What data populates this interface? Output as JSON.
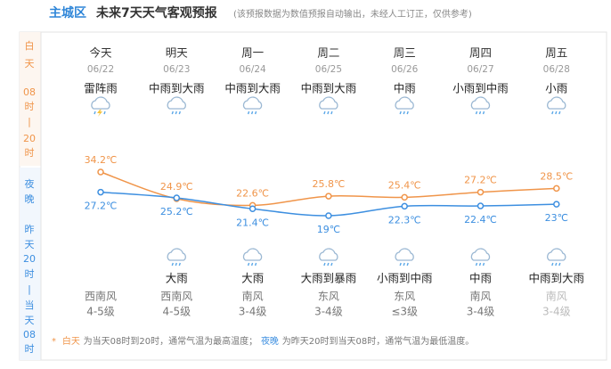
{
  "header": {
    "location": "主城区",
    "title": "未来7天天气客观预报",
    "subtitle": "(该预报数据为数值预报自动输出，未经人工订正，仅供参考)"
  },
  "sidebar": {
    "day": [
      "白",
      "天",
      "08",
      "时",
      "|",
      "20",
      "时"
    ],
    "night": [
      "夜",
      "晚",
      "昨",
      "天",
      "20",
      "时",
      "|",
      "当",
      "天",
      "08",
      "时"
    ]
  },
  "chart_data": {
    "type": "line",
    "categories": [
      "今天",
      "明天",
      "周一",
      "周二",
      "周三",
      "周四",
      "周五"
    ],
    "dates": [
      "06/22",
      "06/23",
      "06/24",
      "06/25",
      "06/26",
      "06/27",
      "06/28"
    ],
    "day_weather": [
      "雷阵雨",
      "中雨到大雨",
      "中雨到大雨",
      "中雨到大雨",
      "中雨",
      "小雨到中雨",
      "小雨"
    ],
    "night_weather": [
      null,
      "大雨",
      "大雨",
      "大雨到暴雨",
      "小雨到中雨",
      "中雨",
      "中雨到大雨"
    ],
    "wind_direction": [
      "西南风",
      "西南风",
      "南风",
      "东风",
      "东风",
      "南风",
      "南风"
    ],
    "wind_level": [
      "4-5级",
      "4-5级",
      "3-4级",
      "3-4级",
      "≤3级",
      "3-4级",
      "3-4级"
    ],
    "series": [
      {
        "color": "#f0954a",
        "values": [
          34.2,
          24.9,
          22.6,
          25.8,
          25.4,
          27.2,
          28.5
        ],
        "value_labels": [
          "34.2℃",
          "24.9℃",
          "22.6℃",
          "25.8℃",
          "25.4℃",
          "27.2℃",
          "28.5℃"
        ]
      },
      {
        "color": "#3d8fe0",
        "values": [
          27.2,
          25.2,
          21.4,
          19,
          22.3,
          22.4,
          23
        ],
        "value_labels": [
          "27.2℃",
          "25.2℃",
          "21.4℃",
          "19℃",
          "22.3℃",
          "22.4℃",
          "23℃"
        ]
      }
    ]
  },
  "footer": {
    "marker": "*",
    "day_term": "白天",
    "day_text": "为当天08时到20时，通常气温为最高温度；",
    "night_term": "夜晚",
    "night_text": "为昨天20时到当天08时，通常气温为最低温度。"
  }
}
